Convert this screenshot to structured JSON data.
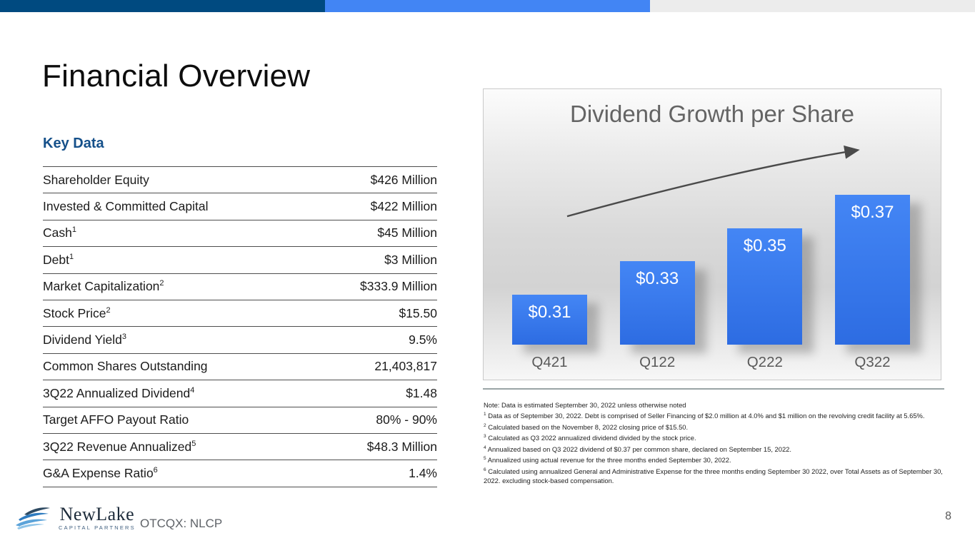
{
  "topbar": {
    "colors": {
      "navy": "#004a80",
      "blue": "#4285f4",
      "gray": "#ececec"
    }
  },
  "page_title": "Financial Overview",
  "key_data": {
    "heading": "Key Data",
    "heading_color": "#15508a",
    "rows": [
      {
        "label": "Shareholder Equity",
        "sup": "",
        "value": "$426 Million"
      },
      {
        "label": "Invested & Committed Capital",
        "sup": "",
        "value": "$422 Million"
      },
      {
        "label": "Cash",
        "sup": "1",
        "value": "$45 Million"
      },
      {
        "label": "Debt",
        "sup": "1",
        "value": "$3 Million"
      },
      {
        "label": "Market Capitalization",
        "sup": "2",
        "value": "$333.9 Million"
      },
      {
        "label": "Stock Price",
        "sup": "2",
        "value": "$15.50"
      },
      {
        "label": "Dividend Yield",
        "sup": "3",
        "value": "9.5%"
      },
      {
        "label": "Common Shares Outstanding",
        "sup": "",
        "value": "21,403,817"
      },
      {
        "label": "3Q22 Annualized Dividend",
        "sup": "4",
        "value": "$1.48"
      },
      {
        "label": "Target AFFO Payout Ratio",
        "sup": "",
        "value": "80% - 90%"
      },
      {
        "label": "3Q22 Revenue Annualized",
        "sup": "5",
        "value": "$48.3 Million"
      },
      {
        "label": "G&A Expense Ratio",
        "sup": "6",
        "value": "1.4%"
      }
    ]
  },
  "chart_data": {
    "type": "bar",
    "title": "Dividend Growth per Share",
    "categories": [
      "Q421",
      "Q122",
      "Q222",
      "Q322"
    ],
    "values": [
      0.31,
      0.33,
      0.35,
      0.37
    ],
    "bar_labels": [
      "$0.31",
      "$0.33",
      "$0.35",
      "$0.37"
    ],
    "xlabel": "",
    "ylabel": "",
    "ylim": [
      0.28,
      0.38
    ],
    "grid": false,
    "legend": false,
    "bar_color": "#3575e8",
    "bar_label_color": "#ffffff",
    "annotations": [
      "upward trend arrow from Q421 toward Q322"
    ]
  },
  "notes": [
    {
      "sup": "",
      "text": "Note: Data is estimated September 30, 2022 unless otherwise noted"
    },
    {
      "sup": "1",
      "text": " Data as of September 30, 2022. Debt is comprised of Seller Financing of $2.0 million at 4.0% and $1 million on the revolving credit facility at 5.65%."
    },
    {
      "sup": "2",
      "text": " Calculated based on the November 8, 2022 closing price of $15.50."
    },
    {
      "sup": "3",
      "text": " Calculated as Q3 2022 annualized dividend divided by the stock price."
    },
    {
      "sup": "4",
      "text": " Annualized based on Q3 2022 dividend of $0.37 per common share, declared on September 15, 2022."
    },
    {
      "sup": "5",
      "text": " Annualized using actual revenue for the three months ended September 30, 2022."
    },
    {
      "sup": "6",
      "text": " Calculated using annualized General and Administrative Expense for the three months ending September 30 2022, over Total Assets as of September 30, 2022. excluding stock-based compensation."
    }
  ],
  "footer": {
    "logo_name": "NewLake",
    "logo_sub": "CAPITAL PARTNERS",
    "ticker": "OTCQX: NLCP",
    "page_number": "8"
  }
}
